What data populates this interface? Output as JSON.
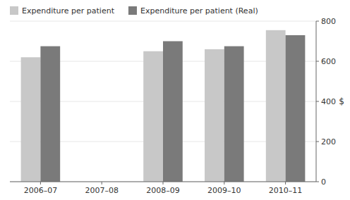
{
  "chart_data": {
    "type": "bar",
    "categories": [
      "2006–07",
      "2007–08",
      "2008–09",
      "2009–10",
      "2010–11"
    ],
    "series": [
      {
        "name": "Expenditure per patient",
        "color": "#c8c8c8",
        "values": [
          620,
          0,
          650,
          660,
          755
        ]
      },
      {
        "name": "Expenditure per patient (Real)",
        "color": "#7a7a7a",
        "values": [
          675,
          0,
          700,
          675,
          730
        ]
      }
    ],
    "ylabel": "$",
    "ylim": [
      0,
      800
    ],
    "yticks": [
      0,
      200,
      400,
      600,
      800
    ],
    "grid": true,
    "legend": "top"
  }
}
